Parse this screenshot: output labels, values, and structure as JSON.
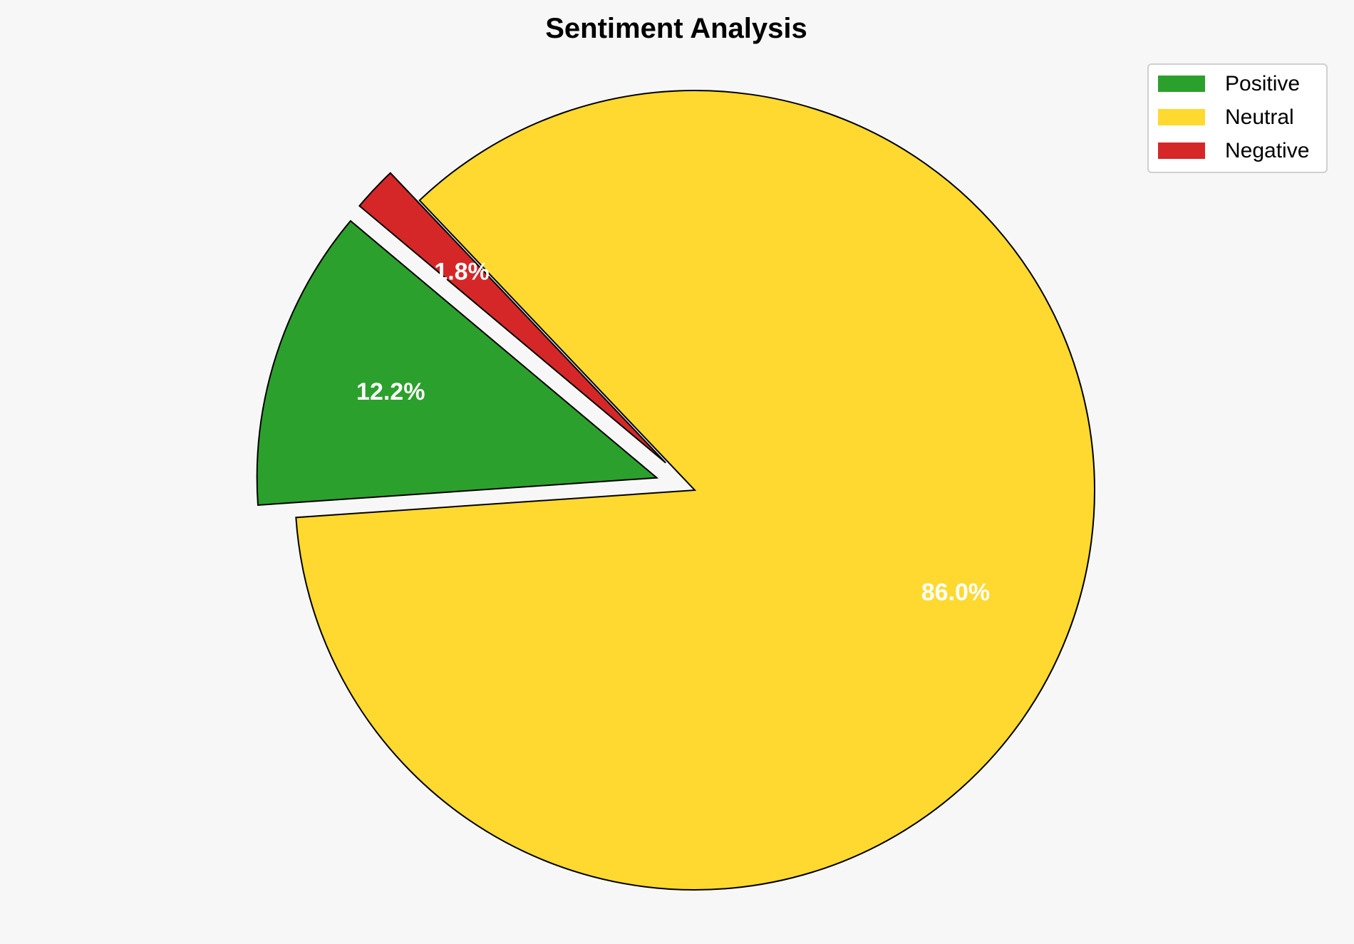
{
  "chart_data": {
    "type": "pie",
    "title": "Sentiment Analysis",
    "categories": [
      "Positive",
      "Neutral",
      "Negative"
    ],
    "values": [
      12.2,
      86.0,
      1.8
    ],
    "labels": [
      "12.2%",
      "86.0%",
      "1.8%"
    ],
    "colors": [
      "#2ca02c",
      "#ffd92f",
      "#d62728"
    ],
    "explode": [
      0.1,
      0,
      0.1
    ],
    "start_angle_deg": 140,
    "direction": "counterclockwise",
    "legend": {
      "placement": "top-right",
      "entries": [
        "Positive",
        "Neutral",
        "Negative"
      ]
    },
    "background": "#f7f7f7"
  }
}
